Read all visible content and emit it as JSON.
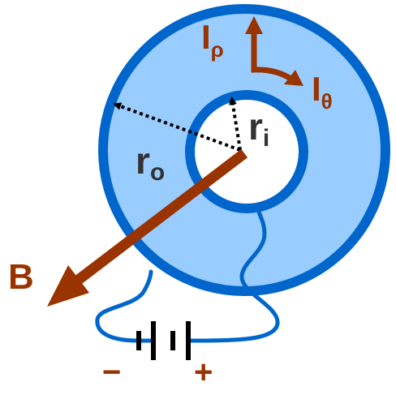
{
  "colors": {
    "ring_fill": "#99ccff",
    "ring_stroke": "#0066cc",
    "inner_fill": "#ffffff",
    "wire": "#0066cc",
    "arrow_brown": "#993300",
    "label_dark": "#333333",
    "minus_color": "#993300",
    "plus_color": "#993300"
  },
  "labels": {
    "r_outer": {
      "main": "r",
      "sub": "o"
    },
    "r_inner": {
      "main": "r",
      "sub": "i"
    },
    "current_rho": {
      "main": "I",
      "sub": "ρ"
    },
    "current_theta": {
      "main": "I",
      "sub": "θ"
    },
    "field": "B",
    "battery_minus": "−",
    "battery_plus": "+"
  }
}
